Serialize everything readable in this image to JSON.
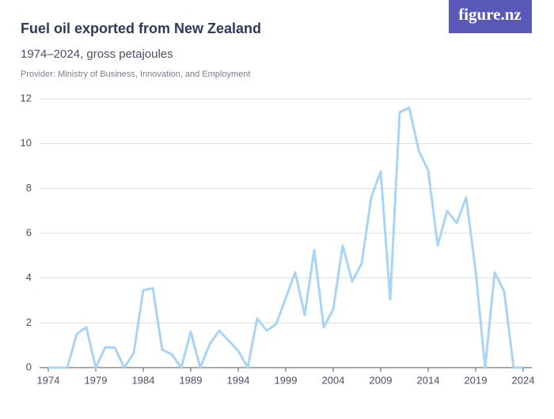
{
  "logo": "figure.nz",
  "chart_data": {
    "type": "line",
    "title": "Fuel oil exported from New Zealand",
    "subtitle": "1974–2024, gross petajoules",
    "provider": "Provider: Ministry of Business, Innovation, and Employment",
    "x": [
      1974,
      1975,
      1976,
      1977,
      1978,
      1979,
      1980,
      1981,
      1982,
      1983,
      1984,
      1985,
      1986,
      1987,
      1988,
      1989,
      1990,
      1991,
      1992,
      1993,
      1994,
      1995,
      1996,
      1997,
      1998,
      1999,
      2000,
      2001,
      2002,
      2003,
      2004,
      2005,
      2006,
      2007,
      2008,
      2009,
      2010,
      2011,
      2012,
      2013,
      2014,
      2015,
      2016,
      2017,
      2018,
      2019,
      2020,
      2021,
      2022,
      2023,
      2024
    ],
    "series": [
      {
        "color": "#a9d4f5",
        "values": [
          0,
          0,
          0,
          1.5,
          1.8,
          0,
          0.9,
          0.9,
          0,
          0.65,
          3.45,
          3.55,
          0.8,
          0.6,
          0,
          1.6,
          0,
          1.05,
          1.65,
          1.2,
          0.75,
          0,
          2.2,
          1.65,
          1.95,
          3.1,
          4.25,
          2.35,
          5.25,
          1.8,
          2.6,
          5.45,
          3.85,
          4.65,
          7.6,
          8.75,
          3.05,
          11.4,
          11.6,
          9.7,
          8.8,
          5.45,
          7.0,
          6.45,
          7.6,
          4.3,
          0,
          4.25,
          3.4,
          0,
          0
        ]
      }
    ],
    "xlim": [
      1974,
      2024
    ],
    "xticks": [
      1974,
      1979,
      1984,
      1989,
      1994,
      1999,
      2004,
      2009,
      2014,
      2019,
      2024
    ],
    "ylim": [
      0,
      12
    ],
    "yticks": [
      0,
      2,
      4,
      6,
      8,
      10,
      12
    ],
    "grid": true
  }
}
